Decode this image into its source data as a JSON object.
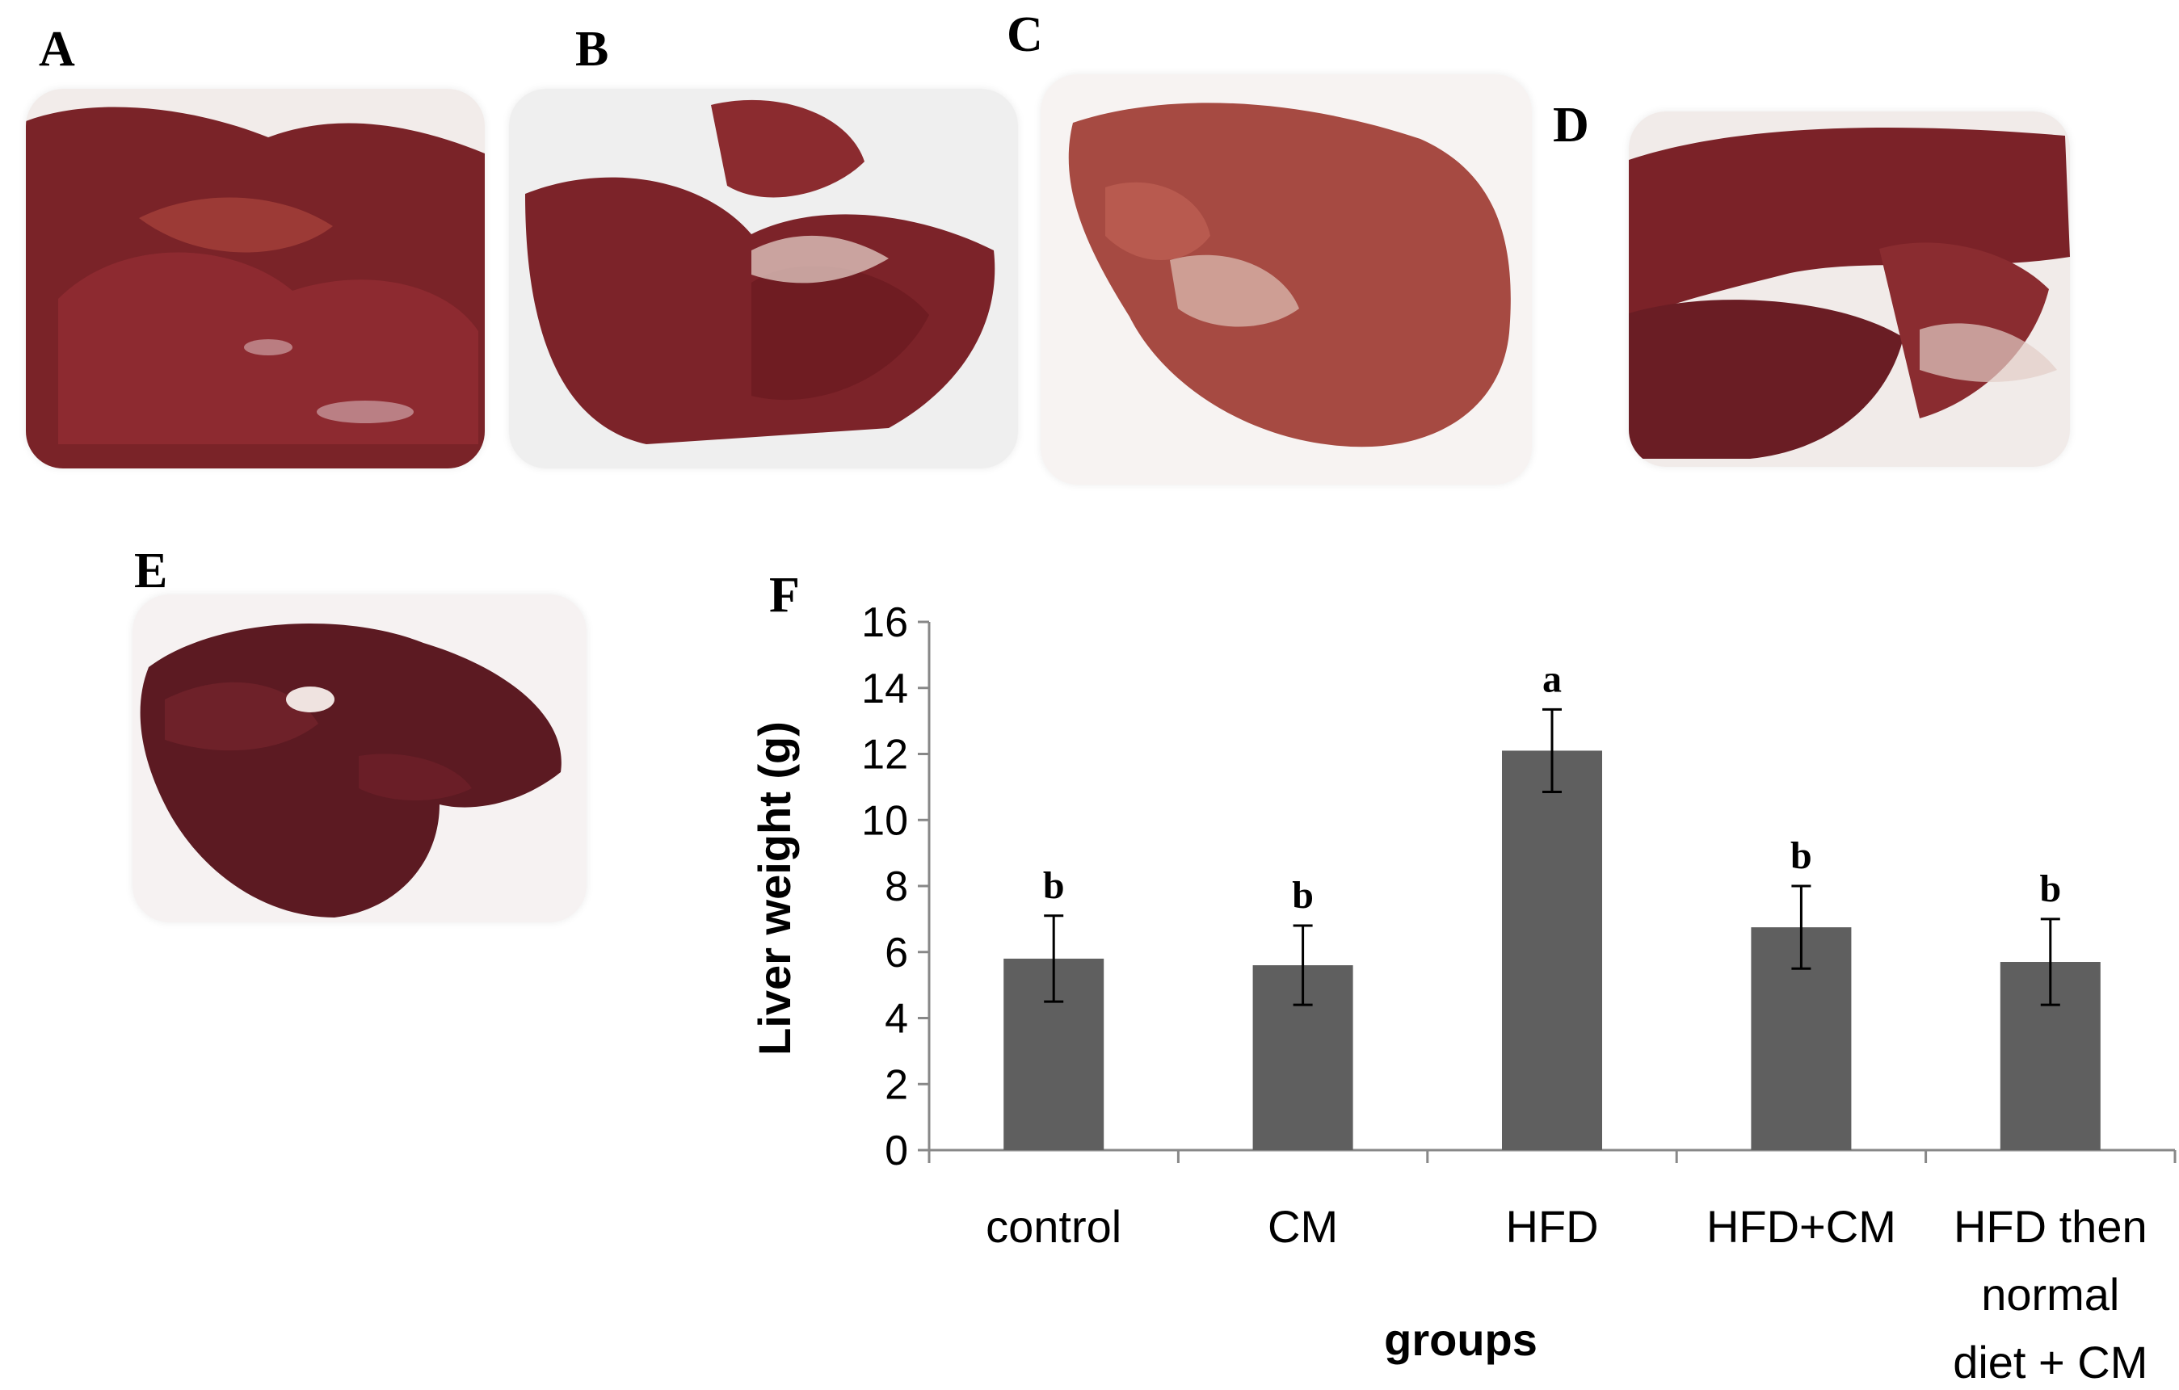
{
  "panels": {
    "A": "A",
    "B": "B",
    "C": "C",
    "D": "D",
    "E": "E",
    "F": "F"
  },
  "colors": {
    "bar": "#5f5f5f",
    "axis": "#888888",
    "liver_dark": "#6e1f24",
    "liver_mid": "#8d2a30",
    "liver_light": "#a5483e"
  },
  "chart_data": {
    "type": "bar",
    "ylabel": "Liver weight (g)",
    "xlabel": "groups",
    "ylim": [
      0,
      16
    ],
    "yticks": [
      0,
      2,
      4,
      6,
      8,
      10,
      12,
      14,
      16
    ],
    "categories": [
      [
        "control"
      ],
      [
        "CM"
      ],
      [
        "HFD"
      ],
      [
        "HFD+CM"
      ],
      [
        "HFD then",
        "normal",
        "diet + CM"
      ]
    ],
    "values": [
      5.8,
      5.6,
      12.1,
      6.75,
      5.7
    ],
    "errors": [
      1.3,
      1.2,
      1.25,
      1.25,
      1.3
    ],
    "significance": [
      "b",
      "b",
      "a",
      "b",
      "b"
    ],
    "grid": false
  }
}
